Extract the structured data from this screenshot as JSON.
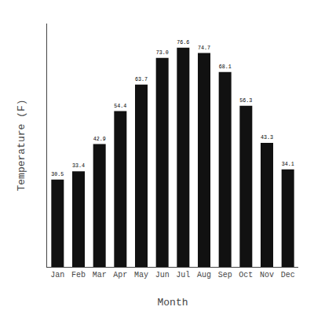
{
  "chart_data": {
    "type": "bar",
    "categories": [
      "Jan",
      "Feb",
      "Mar",
      "Apr",
      "May",
      "Jun",
      "Jul",
      "Aug",
      "Sep",
      "Oct",
      "Nov",
      "Dec"
    ],
    "values": [
      30.5,
      33.4,
      42.9,
      54.4,
      63.7,
      73.0,
      76.6,
      74.7,
      68.1,
      56.3,
      43.3,
      34.1
    ],
    "value_labels": [
      "30.5",
      "33.4",
      "42.9",
      "54.4",
      "63.7",
      "73.0",
      "76.6",
      "74.7",
      "68.1",
      "56.3",
      "43.3",
      "34.1"
    ],
    "color": "#111111",
    "x_label": "Month",
    "y_label": "Temperature (F)",
    "ylim": [
      0,
      85
    ],
    "data_labels": true,
    "tick_labels": "x",
    "grid": false
  }
}
